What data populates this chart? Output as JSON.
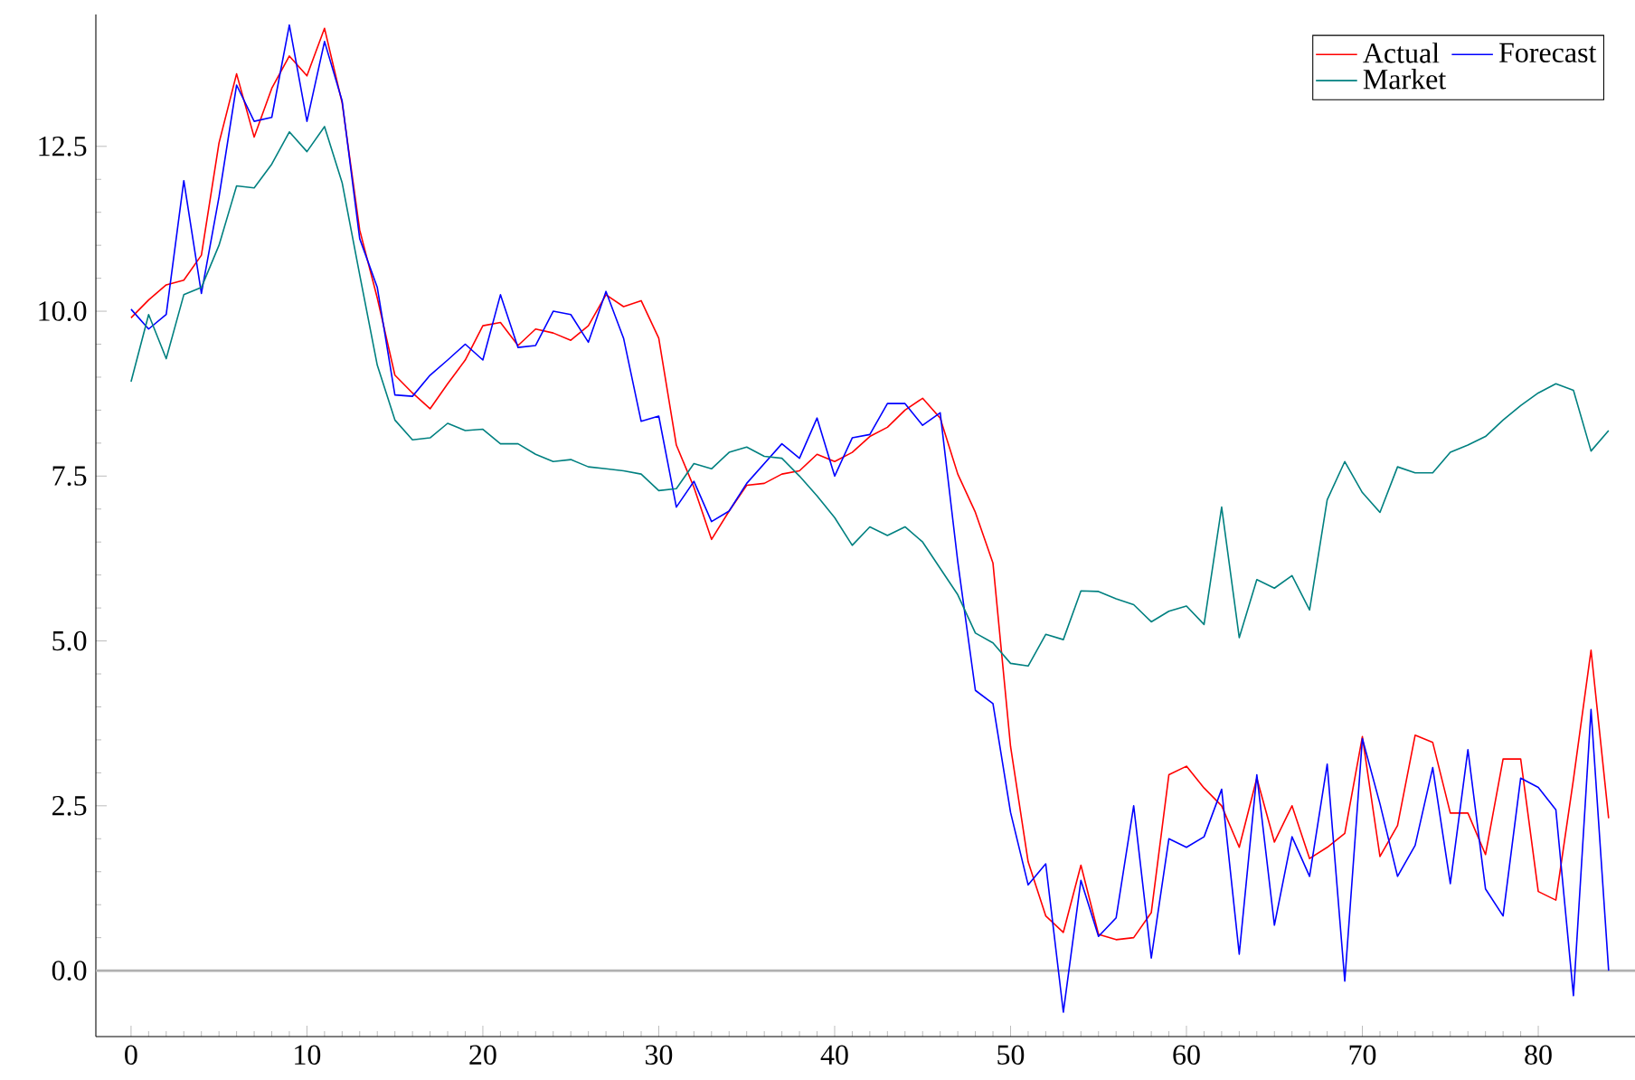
{
  "chart_data": {
    "type": "line",
    "x": [
      0,
      1,
      2,
      3,
      4,
      5,
      6,
      7,
      8,
      9,
      10,
      11,
      12,
      13,
      14,
      15,
      16,
      17,
      18,
      19,
      20,
      21,
      22,
      23,
      24,
      25,
      26,
      27,
      28,
      29,
      30,
      31,
      32,
      33,
      34,
      35,
      36,
      37,
      38,
      39,
      40,
      41,
      42,
      43,
      44,
      45,
      46,
      47,
      48,
      49,
      50,
      51,
      52,
      53,
      54,
      55,
      56,
      57,
      58,
      59,
      60,
      61,
      62,
      63,
      64,
      65,
      66,
      67,
      68,
      69,
      70,
      71,
      72,
      73,
      74,
      75,
      76,
      77,
      78,
      79,
      80,
      81,
      82,
      83,
      84
    ],
    "series": [
      {
        "name": "Actual",
        "color": "#ff0000",
        "values": [
          9.9,
          10.17,
          10.4,
          10.47,
          10.85,
          12.55,
          13.6,
          12.64,
          13.38,
          13.87,
          13.57,
          14.29,
          13.16,
          11.23,
          10.2,
          9.03,
          8.76,
          8.52,
          8.9,
          9.26,
          9.78,
          9.83,
          9.48,
          9.73,
          9.67,
          9.56,
          9.78,
          10.25,
          10.07,
          10.16,
          9.59,
          7.97,
          7.33,
          6.54,
          6.97,
          7.36,
          7.39,
          7.53,
          7.58,
          7.83,
          7.72,
          7.86,
          8.1,
          8.24,
          8.5,
          8.68,
          8.38,
          7.53,
          6.95,
          6.18,
          3.4,
          1.65,
          0.83,
          0.58,
          1.6,
          0.55,
          0.47,
          0.5,
          0.88,
          2.97,
          3.1,
          2.77,
          2.5,
          1.87,
          2.92,
          1.95,
          2.5,
          1.7,
          1.87,
          2.08,
          3.55,
          1.73,
          2.2,
          3.57,
          3.46,
          2.39,
          2.39,
          1.76,
          3.21,
          3.21,
          1.2,
          1.07,
          2.9,
          4.86,
          2.31
        ]
      },
      {
        "name": "Forecast",
        "color": "#0000ff",
        "values": [
          10.03,
          9.73,
          9.95,
          11.98,
          10.27,
          11.73,
          13.43,
          12.88,
          12.94,
          14.34,
          12.88,
          14.09,
          13.19,
          11.1,
          10.36,
          8.73,
          8.71,
          9.03,
          9.26,
          9.5,
          9.26,
          10.25,
          9.45,
          9.48,
          10.0,
          9.95,
          9.53,
          10.3,
          9.59,
          8.33,
          8.41,
          7.03,
          7.42,
          6.81,
          6.97,
          7.39,
          7.69,
          7.99,
          7.77,
          8.38,
          7.5,
          8.08,
          8.13,
          8.6,
          8.6,
          8.27,
          8.46,
          6.2,
          4.25,
          4.05,
          2.4,
          1.3,
          1.62,
          -0.63,
          1.37,
          0.52,
          0.8,
          2.5,
          0.19,
          2.0,
          1.87,
          2.03,
          2.75,
          0.25,
          2.97,
          0.69,
          2.03,
          1.43,
          3.13,
          -0.16,
          3.52,
          2.53,
          1.43,
          1.9,
          3.08,
          1.32,
          3.35,
          1.24,
          0.83,
          2.92,
          2.78,
          2.44,
          -0.38,
          3.96,
          0.0
        ]
      },
      {
        "name": "Market",
        "color": "#008080",
        "values": [
          8.93,
          9.95,
          9.28,
          10.25,
          10.36,
          11.0,
          11.9,
          11.87,
          12.23,
          12.72,
          12.42,
          12.8,
          11.95,
          10.55,
          9.18,
          8.35,
          8.05,
          8.08,
          8.3,
          8.19,
          8.21,
          7.99,
          7.99,
          7.83,
          7.72,
          7.75,
          7.64,
          7.61,
          7.58,
          7.53,
          7.28,
          7.31,
          7.69,
          7.61,
          7.86,
          7.94,
          7.8,
          7.77,
          7.5,
          7.2,
          6.87,
          6.45,
          6.73,
          6.6,
          6.73,
          6.5,
          6.1,
          5.7,
          5.12,
          4.97,
          4.66,
          4.62,
          5.1,
          5.02,
          5.76,
          5.75,
          5.64,
          5.55,
          5.29,
          5.45,
          5.53,
          5.25,
          7.03,
          5.05,
          5.93,
          5.8,
          5.99,
          5.47,
          7.14,
          7.72,
          7.25,
          6.95,
          7.64,
          7.55,
          7.55,
          7.86,
          7.97,
          8.1,
          8.35,
          8.57,
          8.76,
          8.9,
          8.8,
          7.88,
          8.19
        ]
      }
    ],
    "xlim": [
      -2,
      85.5
    ],
    "ylim": [
      -1,
      14.5
    ],
    "xticks": [
      0,
      10,
      20,
      30,
      40,
      50,
      60,
      70,
      80
    ],
    "yticks": [
      {
        "value": 0,
        "label": "0.0"
      },
      {
        "value": 2.5,
        "label": "2.5"
      },
      {
        "value": 5,
        "label": "5.0"
      },
      {
        "value": 7.5,
        "label": "7.5"
      },
      {
        "value": 10,
        "label": "10.0"
      },
      {
        "value": 12.5,
        "label": "12.5"
      }
    ],
    "ref_lines": [
      {
        "axis": "y",
        "value": 0,
        "color": "#b0b0b0"
      }
    ],
    "legend": "top right",
    "grid": false,
    "marker": "none",
    "line_style": "solid"
  }
}
